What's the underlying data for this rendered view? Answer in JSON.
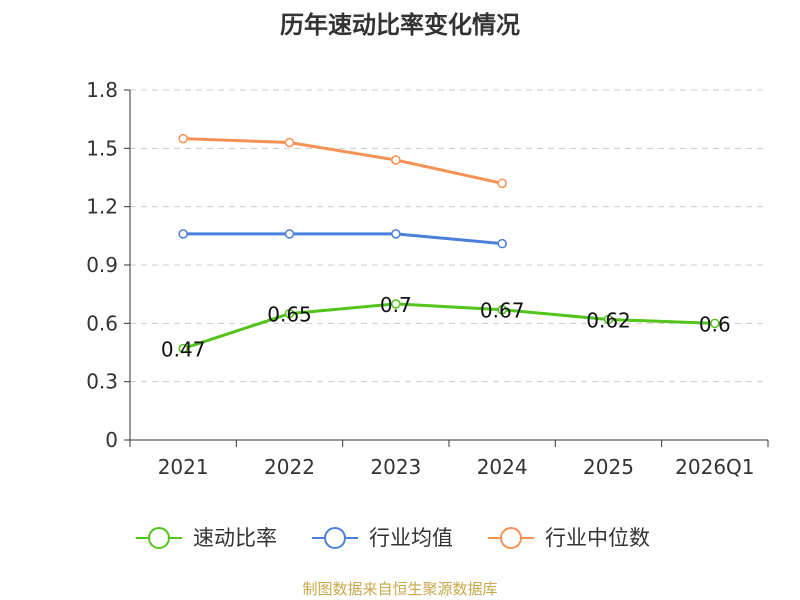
{
  "chart_data": {
    "type": "line",
    "title": "历年速动比率变化情况",
    "categories": [
      "2021",
      "2022",
      "2023",
      "2024",
      "2025",
      "2026Q1"
    ],
    "ylim": [
      0,
      1.8
    ],
    "yticks": [
      0,
      0.3,
      0.6,
      0.9,
      1.2,
      1.5,
      1.8
    ],
    "ytick_labels": [
      "0",
      "0.3",
      "0.6",
      "0.9",
      "1.2",
      "1.5",
      "1.8"
    ],
    "grid": true,
    "legend_position": "bottom",
    "series": [
      {
        "name": "速动比率",
        "color": "#52c41a",
        "values": [
          0.47,
          0.65,
          0.7,
          0.67,
          0.62,
          0.6
        ],
        "labels": [
          "0.47",
          "0.65",
          "0.7",
          "0.67",
          "0.62",
          "0.6"
        ]
      },
      {
        "name": "行业均值",
        "color": "#4a7fdc",
        "values": [
          1.06,
          1.06,
          1.06,
          1.01,
          null,
          null
        ]
      },
      {
        "name": "行业中位数",
        "color": "#f79256",
        "values": [
          1.55,
          1.53,
          1.44,
          1.32,
          null,
          null
        ]
      }
    ]
  },
  "footer": {
    "source": "制图数据来自恒生聚源数据库"
  }
}
